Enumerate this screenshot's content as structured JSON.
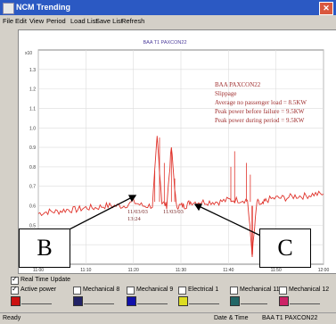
{
  "window": {
    "title": "NCM Trending",
    "close_label": "✕"
  },
  "menu": [
    "File",
    "Edit",
    "View",
    "Period",
    "Load List",
    "Save List",
    "Refresh"
  ],
  "chart_data": {
    "type": "line",
    "title": "BAA T1 PAXCON22",
    "ylabel": "x10",
    "xlim": [
      "11:00",
      "12:00"
    ],
    "ylim": [
      0.3,
      1.4
    ],
    "x_ticks": [
      "11:00",
      "11:10",
      "11:20",
      "11:30",
      "11:40",
      "11:50",
      "12:00"
    ],
    "y_ticks": [
      "1.3",
      "1.2",
      "1.1",
      "1.0",
      "0.9",
      "0.8",
      "0.7",
      "0.6",
      "0.5",
      "0.4"
    ],
    "color": "#e0342c",
    "series": [
      {
        "name": "",
        "x_minutes": [
          0,
          2,
          4,
          6,
          8,
          10,
          12,
          14,
          16,
          18,
          20,
          22,
          24,
          25,
          26,
          27,
          28,
          29,
          30,
          31,
          32,
          34,
          36,
          38,
          40,
          42,
          44,
          45,
          46,
          47,
          48,
          50,
          52,
          54,
          56,
          58,
          60
        ],
        "values": [
          0.56,
          0.57,
          0.57,
          0.58,
          0.58,
          0.59,
          0.59,
          0.6,
          0.6,
          0.6,
          0.62,
          0.6,
          0.6,
          0.95,
          0.62,
          0.6,
          0.9,
          0.6,
          0.6,
          0.6,
          0.62,
          0.62,
          0.62,
          0.62,
          0.63,
          0.63,
          0.63,
          0.35,
          0.62,
          0.6,
          0.63,
          0.64,
          0.64,
          0.65,
          0.65,
          0.66,
          0.66
        ]
      }
    ],
    "annotations": [
      "BAA PAXCON22",
      "Slippage",
      "Average no passenger load = 8.5KW",
      "Peak power before failure = 9.5KW",
      "Peak power during period = 9.5KW"
    ],
    "point_labels": [
      {
        "text": "11/03/03 13:24",
        "lines": [
          "11/03/03",
          "13:24"
        ]
      },
      {
        "text": "11/03/03",
        "lines": [
          "11/03/03"
        ]
      }
    ],
    "grid": true
  },
  "callouts": [
    "B",
    "C"
  ],
  "controls": {
    "realtime_label": "Real Time Update",
    "items": [
      {
        "label": "Active power",
        "checked": true,
        "color": "#cc1111"
      },
      {
        "label": "Mechanical 8",
        "checked": false,
        "color": "#222266"
      },
      {
        "label": "Mechanical 9",
        "checked": false,
        "color": "#1111aa"
      },
      {
        "label": "Electrical 1",
        "checked": false,
        "color": "#dddd22"
      },
      {
        "label": "Mechanical 11",
        "checked": false,
        "color": "#226666"
      },
      {
        "label": "Mechanical 12",
        "checked": false,
        "color": "#cc2266"
      }
    ]
  },
  "status": {
    "left": "Ready",
    "middle": "Date & Time",
    "right": "BAA T1 PAXCON22"
  }
}
